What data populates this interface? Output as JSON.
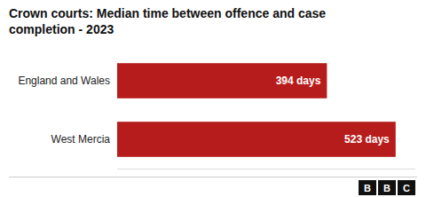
{
  "chart_data": {
    "type": "bar",
    "orientation": "horizontal",
    "title": "Crown courts: Median time between offence and case\ncompletion - 2023",
    "categories": [
      "England and Wales",
      "West Mercia"
    ],
    "values": [
      394,
      523
    ],
    "value_labels": [
      "394 days",
      "523 days"
    ],
    "data_labels": true,
    "color": "#b71c1c",
    "xlim": [
      0,
      560
    ],
    "tick_labels": false,
    "grid": false,
    "annotations": [
      "B",
      "B",
      "C"
    ]
  }
}
